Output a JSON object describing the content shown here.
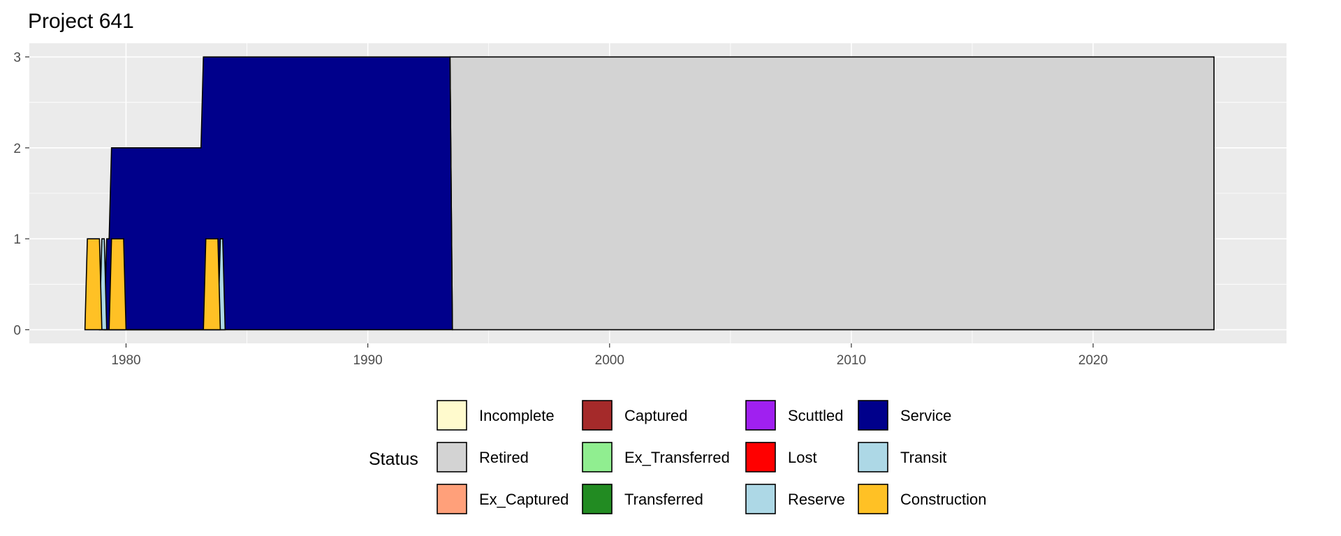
{
  "chart_data": {
    "type": "area",
    "title": "Project 641",
    "xlabel": "",
    "ylabel": "",
    "xlim": [
      1976,
      2028
    ],
    "ylim": [
      -0.15,
      3.15
    ],
    "x_ticks": [
      1980,
      1990,
      2000,
      2010,
      2020
    ],
    "y_ticks": [
      0,
      1,
      2,
      3
    ],
    "grid": true,
    "legend": {
      "title": "Status",
      "position": "bottom",
      "entries": [
        {
          "name": "Incomplete",
          "color": "#FFFACD"
        },
        {
          "name": "Retired",
          "color": "#D3D3D3"
        },
        {
          "name": "Ex_Captured",
          "color": "#FFA07A"
        },
        {
          "name": "Captured",
          "color": "#A52A2A"
        },
        {
          "name": "Ex_Transferred",
          "color": "#90EE90"
        },
        {
          "name": "Transferred",
          "color": "#228B22"
        },
        {
          "name": "Scuttled",
          "color": "#A020F0"
        },
        {
          "name": "Lost",
          "color": "#FF0000"
        },
        {
          "name": "Reserve",
          "color": "#ADD8E6"
        },
        {
          "name": "Service",
          "color": "#00008B"
        },
        {
          "name": "Transit",
          "color": "#ADD8E6"
        },
        {
          "name": "Construction",
          "color": "#FFC125"
        }
      ]
    },
    "series": [
      {
        "name": "Construction",
        "color": "#FFC125",
        "points": [
          [
            1978.3,
            0
          ],
          [
            1978.4,
            1
          ],
          [
            1978.9,
            1
          ],
          [
            1979.0,
            0
          ],
          [
            1979.3,
            0
          ],
          [
            1979.4,
            1
          ],
          [
            1979.9,
            1
          ],
          [
            1980.0,
            0
          ],
          [
            1983.2,
            0
          ],
          [
            1983.3,
            1
          ],
          [
            1983.8,
            1
          ],
          [
            1983.9,
            0
          ]
        ]
      },
      {
        "name": "Transit",
        "color": "#ADD8E6",
        "points": [
          [
            1978.9,
            0
          ],
          [
            1979.0,
            1
          ],
          [
            1979.1,
            1
          ],
          [
            1979.2,
            0
          ],
          [
            1983.8,
            0
          ],
          [
            1983.9,
            1
          ],
          [
            1984.0,
            1
          ],
          [
            1984.1,
            0
          ]
        ]
      },
      {
        "name": "Service",
        "color": "#00008B",
        "points": [
          [
            1979.1,
            0
          ],
          [
            1979.2,
            1
          ],
          [
            1979.3,
            1
          ],
          [
            1979.4,
            2
          ],
          [
            1983.1,
            2
          ],
          [
            1983.2,
            3
          ],
          [
            1993.4,
            3
          ],
          [
            1993.5,
            0
          ]
        ]
      },
      {
        "name": "Retired",
        "color": "#D3D3D3",
        "points": [
          [
            1993.4,
            3
          ],
          [
            1993.5,
            3
          ],
          [
            2025,
            3
          ],
          [
            2025,
            0
          ]
        ]
      }
    ]
  }
}
